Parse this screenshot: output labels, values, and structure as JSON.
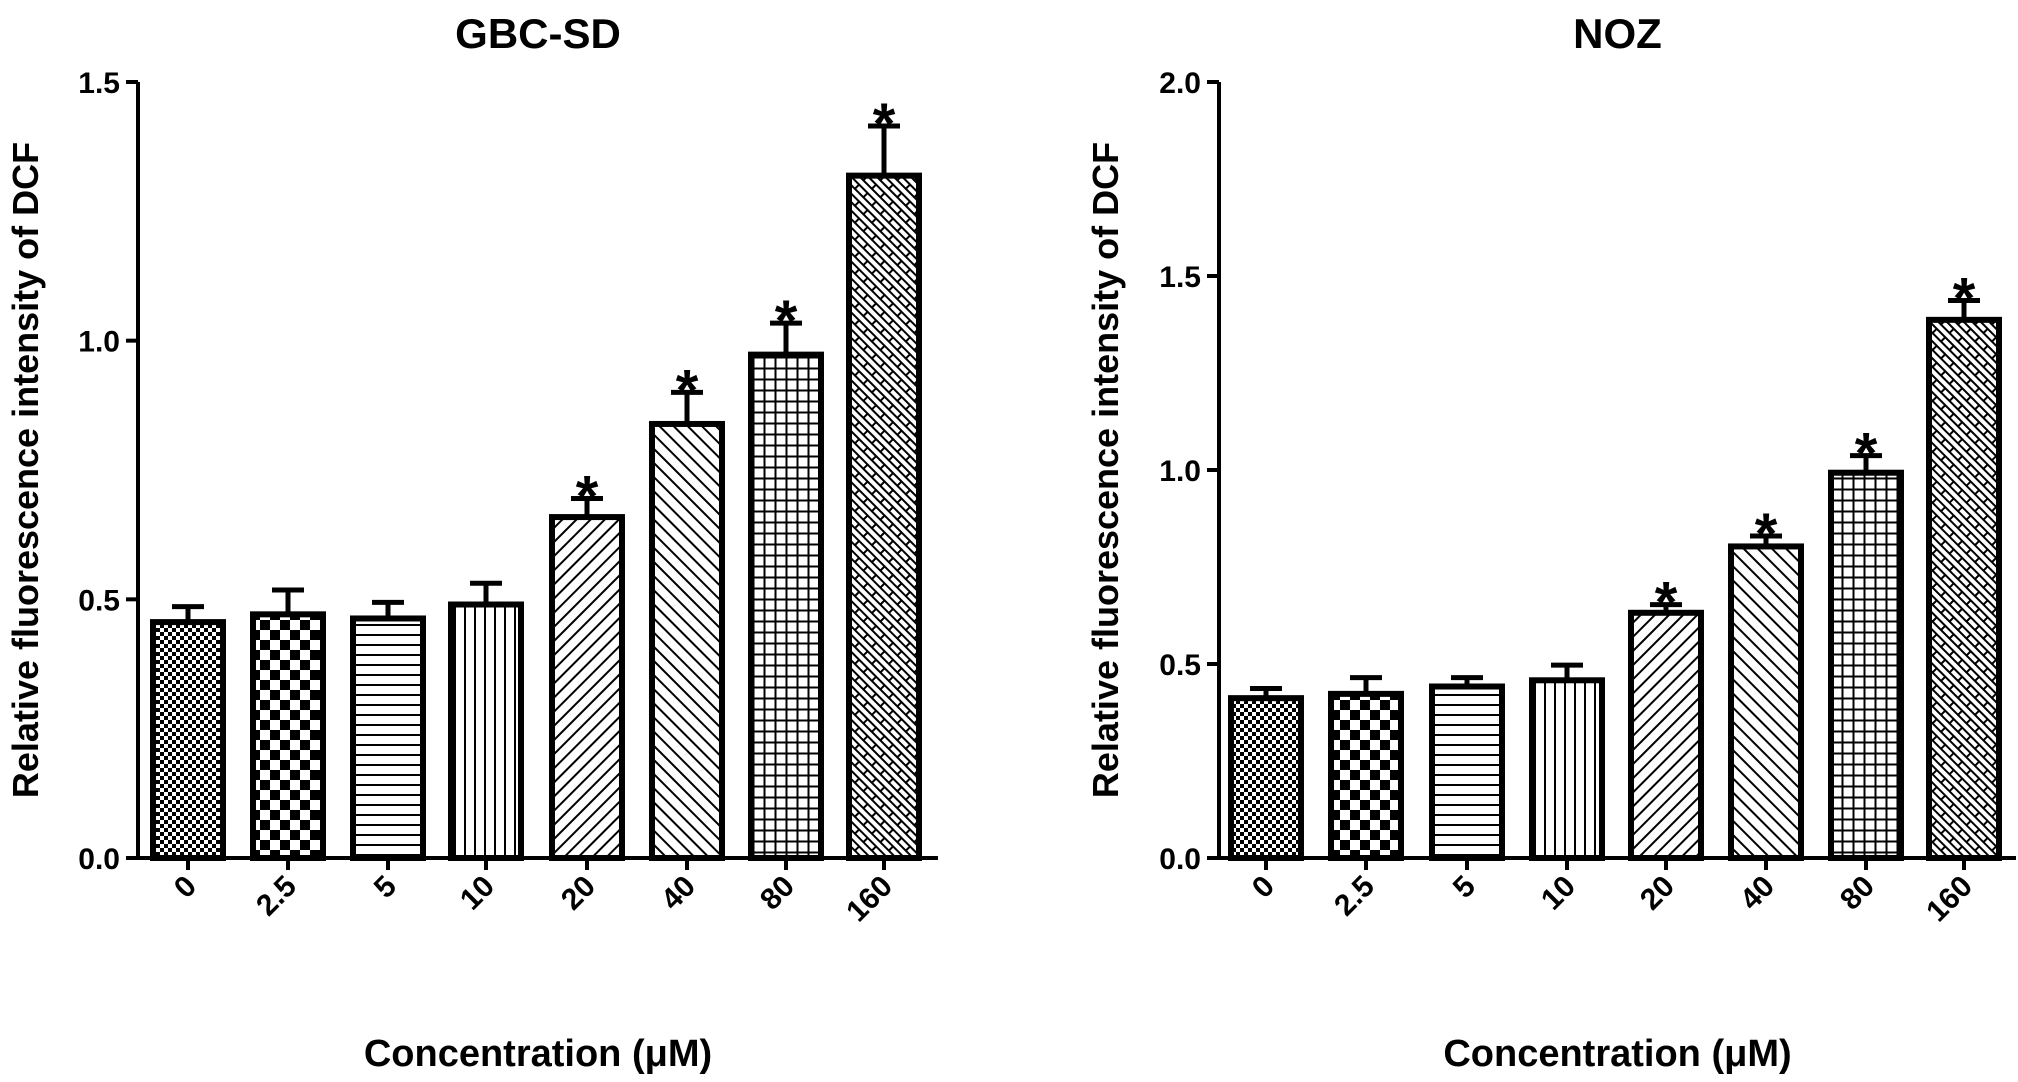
{
  "chart_data": [
    {
      "type": "bar",
      "title": "GBC-SD",
      "xlabel": "Concentration (μM)",
      "ylabel": "Relative fluorescence intensity of DCF",
      "categories": [
        "0",
        "2.5",
        "5",
        "10",
        "20",
        "40",
        "80",
        "160"
      ],
      "values": [
        0.456,
        0.471,
        0.463,
        0.49,
        0.659,
        0.839,
        0.973,
        1.319
      ],
      "error_upper": [
        0.486,
        0.518,
        0.494,
        0.531,
        0.695,
        0.9,
        1.034,
        1.415
      ],
      "significance": [
        "",
        "",
        "",
        "",
        "*",
        "*",
        "*",
        "*"
      ],
      "ylim": [
        0,
        1.5
      ],
      "yticks": [
        "0.0",
        "0.5",
        "1.0",
        "1.5"
      ],
      "ytick_values": [
        0,
        0.5,
        1.0,
        1.5
      ],
      "grid": false
    },
    {
      "type": "bar",
      "title": "NOZ",
      "xlabel": "Concentration (μM)",
      "ylabel": "Relative fluorescence intensity of DCF",
      "categories": [
        "0",
        "2.5",
        "5",
        "10",
        "20",
        "40",
        "80",
        "160"
      ],
      "values": [
        0.412,
        0.423,
        0.442,
        0.458,
        0.632,
        0.803,
        0.993,
        1.387
      ],
      "error_upper": [
        0.437,
        0.465,
        0.465,
        0.497,
        0.653,
        0.83,
        1.037,
        1.437
      ],
      "significance": [
        "",
        "",
        "",
        "",
        "*",
        "*",
        "*",
        "*"
      ],
      "ylim": [
        0,
        2.0
      ],
      "yticks": [
        "0.0",
        "0.5",
        "1.0",
        "1.5",
        "2.0"
      ],
      "ytick_values": [
        0,
        0.5,
        1.0,
        1.5,
        2.0
      ],
      "grid": false
    }
  ]
}
